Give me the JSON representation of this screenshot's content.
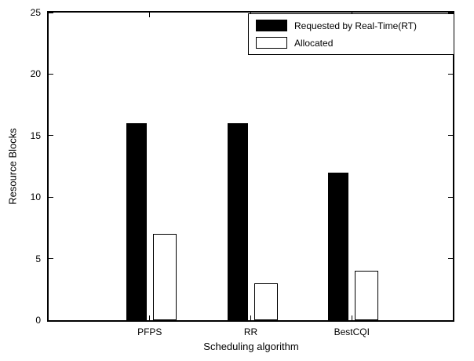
{
  "chart_data": {
    "type": "bar",
    "categories": [
      "PFPS",
      "RR",
      "BestCQI"
    ],
    "series": [
      {
        "name": "Requested by Real-Time(RT)",
        "values": [
          16,
          16,
          12
        ],
        "fill": "#000000"
      },
      {
        "name": "Allocated",
        "values": [
          7,
          3,
          4
        ],
        "fill": "#ffffff"
      }
    ],
    "title": "",
    "xlabel": "Scheduling algorithm",
    "ylabel": "Resource Blocks",
    "ylim": [
      0,
      25
    ],
    "yticks": [
      0,
      5,
      10,
      15,
      20,
      25
    ],
    "grid": false,
    "legend_position": "top-right",
    "background": "#ffffff",
    "axis_color": "#000000",
    "bar_border_color": "#000000"
  }
}
